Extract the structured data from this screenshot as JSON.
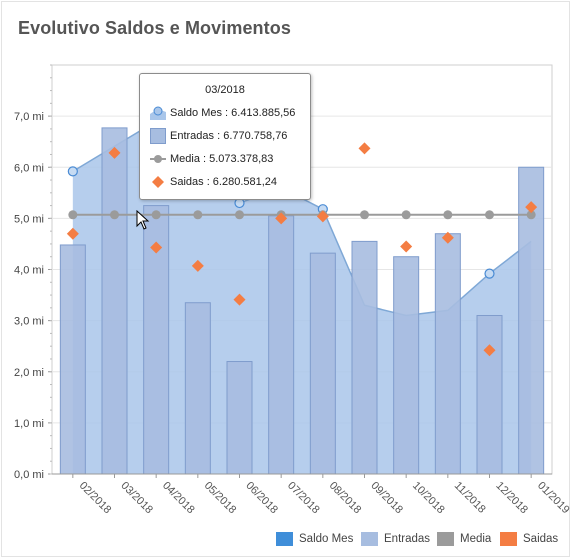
{
  "title": "Evolutivo Saldos e Movimentos",
  "colors": {
    "saldo_area": "#a9c6ea",
    "saldo_line": "#7fa8d6",
    "saldo_marker": "#4a8bd4",
    "entradas_bar": "#a7bde0",
    "entradas_border": "#7f9ccc",
    "media_line": "#9b9b9b",
    "media_marker": "#9b9b9b",
    "saidas_marker": "#f47d43",
    "legend_saldo": "#3f8ed9",
    "legend_entradas": "#a7bde0",
    "legend_media": "#9b9b9b",
    "legend_saidas": "#f47d43"
  },
  "chart_data": {
    "type": "bar",
    "categories": [
      "02/2018",
      "03/2018",
      "04/2018",
      "05/2018",
      "06/2018",
      "07/2018",
      "08/2018",
      "09/2018",
      "10/2018",
      "11/2018",
      "12/2018",
      "01/2019"
    ],
    "y_ticks": [
      "0,0 mi",
      "1,0 mi",
      "2,0 mi",
      "3,0 mi",
      "4,0 mi",
      "5,0 mi",
      "6,0 mi",
      "7,0 mi"
    ],
    "ylim": [
      0,
      8.0
    ],
    "series": [
      {
        "name": "Saldo Mes",
        "kind": "area",
        "values": [
          5.92,
          6.41,
          6.9,
          6.8,
          5.3,
          5.6,
          5.18,
          3.3,
          3.1,
          3.2,
          3.92,
          4.55
        ]
      },
      {
        "name": "Entradas",
        "kind": "bar",
        "values": [
          4.48,
          6.77,
          5.25,
          3.35,
          2.2,
          5.05,
          4.32,
          4.55,
          4.25,
          4.7,
          3.1,
          6.0
        ]
      },
      {
        "name": "Media",
        "kind": "line",
        "values": [
          5.07,
          5.07,
          5.07,
          5.07,
          5.07,
          5.07,
          5.07,
          5.07,
          5.07,
          5.07,
          5.07,
          5.07
        ]
      },
      {
        "name": "Saidas",
        "kind": "scatter",
        "values": [
          4.7,
          6.28,
          4.43,
          4.07,
          3.41,
          5.0,
          5.04,
          6.37,
          4.45,
          4.62,
          2.42,
          5.22
        ]
      }
    ],
    "grid": true,
    "legend_position": "bottom-right"
  },
  "tooltip": {
    "title": "03/2018",
    "rows": [
      {
        "label": "Saldo Mes : 6.413.885,56",
        "icon": "saldo-mes-icon"
      },
      {
        "label": "Entradas : 6.770.758,76",
        "icon": "entradas-icon"
      },
      {
        "label": "Media : 5.073.378,83",
        "icon": "media-icon"
      },
      {
        "label": "Saidas : 6.280.581,24",
        "icon": "saidas-icon"
      }
    ]
  },
  "legend": [
    {
      "label": "Saldo Mes",
      "color_key": "legend_saldo"
    },
    {
      "label": "Entradas",
      "color_key": "legend_entradas"
    },
    {
      "label": "Media",
      "color_key": "legend_media"
    },
    {
      "label": "Saidas",
      "color_key": "legend_saidas"
    }
  ]
}
